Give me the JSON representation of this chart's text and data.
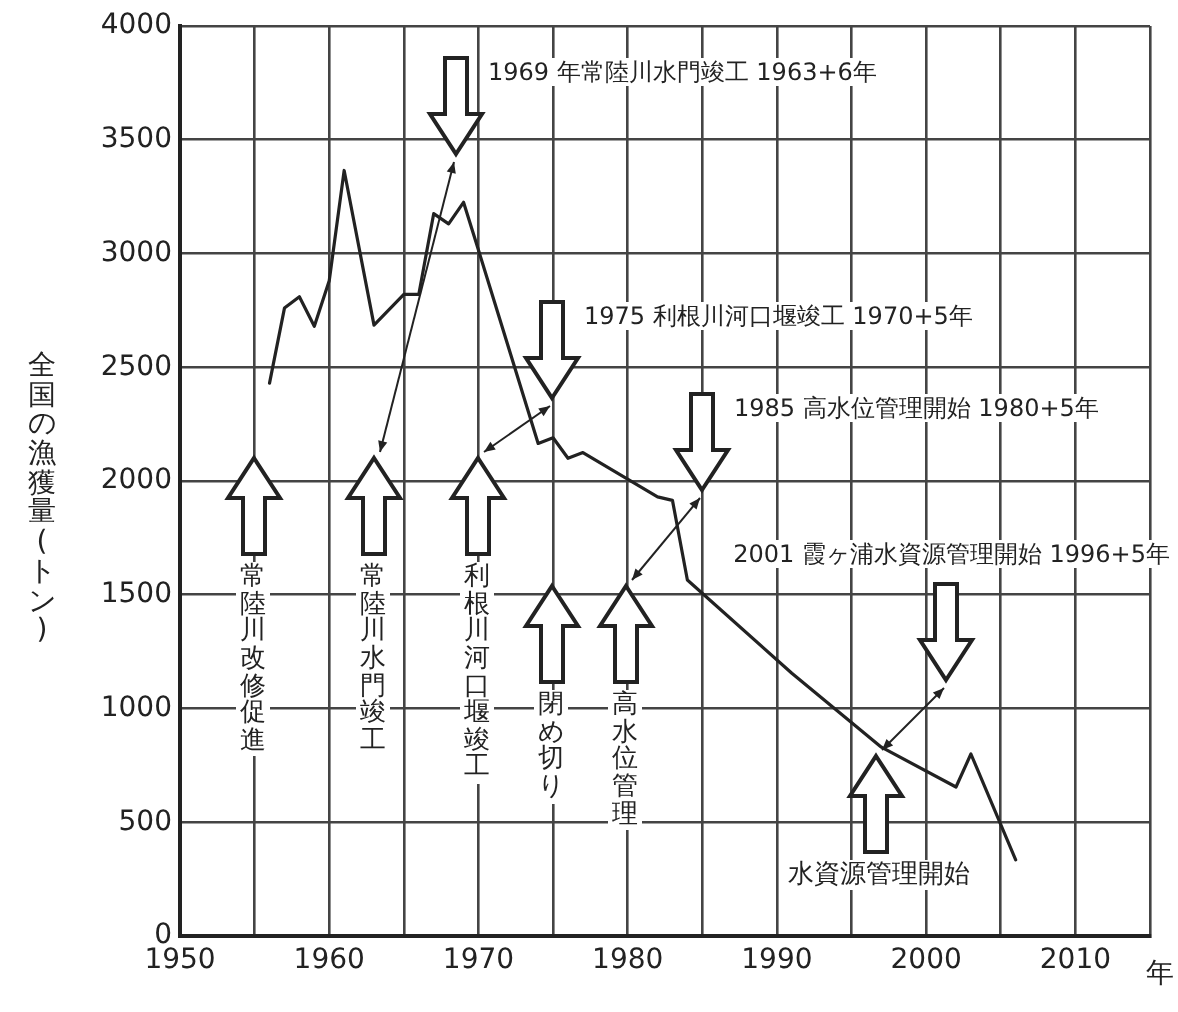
{
  "chart_data": {
    "type": "line",
    "xlabel": "年",
    "ylabel": "全国の漁獲量(トン)",
    "x": [
      1956,
      1957,
      1958,
      1959,
      1960,
      1961,
      1963,
      1965,
      1966,
      1967,
      1968,
      1969,
      1970,
      1974,
      1975,
      1976,
      1977,
      1982,
      1983,
      1984,
      1991,
      1997,
      2002,
      2003,
      2006
    ],
    "series": [
      {
        "color": "#222222",
        "values": [
          2430,
          2760,
          2810,
          2680,
          2880,
          3365,
          2685,
          2820,
          2820,
          3175,
          3130,
          3225,
          3015,
          2165,
          2190,
          2100,
          2125,
          1930,
          1915,
          1565,
          1155,
          830,
          655,
          800,
          335
        ]
      }
    ],
    "xlim": [
      1950,
      2015
    ],
    "xticks": [
      1950,
      {
        "value": 1955,
        "label": null
      },
      1960,
      {
        "value": 1965,
        "label": null
      },
      1970,
      {
        "value": 1975,
        "label": null
      },
      1980,
      {
        "value": 1985,
        "label": null
      },
      1990,
      {
        "value": 1995,
        "label": null
      },
      2000,
      {
        "value": 2005,
        "label": null
      },
      2010,
      {
        "value": 2015,
        "label": null
      }
    ],
    "ylim": [
      0,
      4000
    ],
    "yticks": [
      0,
      500,
      1000,
      1500,
      2000,
      2500,
      3000,
      3500,
      4000
    ],
    "grid": true,
    "legend": false,
    "marker": "none",
    "line_style": "solid",
    "annotations": [
      "1969 年常陸川水門竣工 1963+6年",
      "1975 利根川河口堰竣工 1970+5年",
      "1985 高水位管理開始 1980+5年",
      "2001 霞ヶ浦水資源管理開始 1996+5年",
      "常陸川改修促進",
      "常陸川水門竣工",
      "利根川河口堰竣工",
      "閉め切り",
      "高水位管理",
      "水資源管理開始"
    ]
  }
}
